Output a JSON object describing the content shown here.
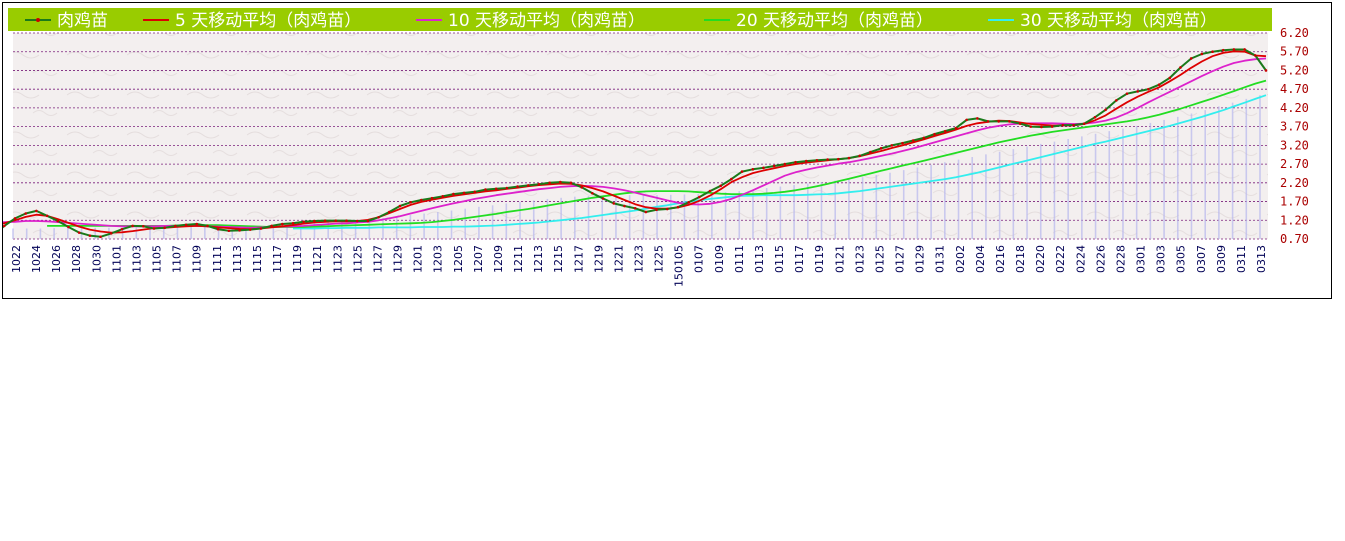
{
  "colors": {
    "legend_bg": "#99cc00",
    "plot_bg": "#f3efef",
    "grid": "#7a1f7a",
    "price": "#1a7a1a",
    "price_marker": "#cc0000",
    "ma5": "#dd0000",
    "ma10": "#dd22cc",
    "ma20": "#22dd22",
    "ma30": "#33eeee",
    "volume_bar": "#b8b8ee",
    "y_tick_text": "#aa0000",
    "x_tick_text": "#000055"
  },
  "chart_data": {
    "type": "line",
    "x_ticks": [
      "1022",
      "1024",
      "1026",
      "1028",
      "1030",
      "1101",
      "1103",
      "1105",
      "1107",
      "1109",
      "1111",
      "1113",
      "1115",
      "1117",
      "1119",
      "1121",
      "1123",
      "1125",
      "1127",
      "1129",
      "1201",
      "1203",
      "1205",
      "1207",
      "1209",
      "1211",
      "1213",
      "1215",
      "1217",
      "1219",
      "1221",
      "1223",
      "1225",
      "150105",
      "0107",
      "0109",
      "0111",
      "0113",
      "0115",
      "0117",
      "0119",
      "0121",
      "0123",
      "0125",
      "0127",
      "0129",
      "0131",
      "0202",
      "0204",
      "0216",
      "0218",
      "0220",
      "0222",
      "0224",
      "0226",
      "0228",
      "0301",
      "0303",
      "0305",
      "0307",
      "0309",
      "0311",
      "0313"
    ],
    "ylim": [
      0.7,
      6.2
    ],
    "y_ticks": [
      "6.20",
      "5.70",
      "5.20",
      "4.70",
      "4.20",
      "3.70",
      "3.20",
      "2.70",
      "2.20",
      "1.70",
      "1.20",
      "0.70"
    ],
    "grid": true,
    "legend_position": "top",
    "series": [
      {
        "name": "肉鸡苗",
        "style": "line-with-markers",
        "values": [
          0.8,
          1.05,
          1.25,
          1.38,
          1.45,
          1.32,
          1.18,
          1.02,
          0.87,
          0.79,
          0.76,
          0.85,
          0.96,
          1.05,
          1.04,
          0.98,
          1.0,
          1.05,
          1.08,
          1.1,
          1.05,
          0.96,
          0.92,
          0.93,
          0.95,
          0.98,
          1.05,
          1.1,
          1.12,
          1.16,
          1.18,
          1.19,
          1.19,
          1.19,
          1.18,
          1.18,
          1.28,
          1.42,
          1.58,
          1.68,
          1.74,
          1.79,
          1.84,
          1.9,
          1.93,
          1.96,
          2.02,
          2.04,
          2.06,
          2.1,
          2.13,
          2.16,
          2.2,
          2.22,
          2.2,
          2.08,
          1.92,
          1.78,
          1.65,
          1.58,
          1.52,
          1.42,
          1.48,
          1.5,
          1.55,
          1.68,
          1.82,
          1.98,
          2.12,
          2.3,
          2.5,
          2.56,
          2.6,
          2.65,
          2.7,
          2.75,
          2.78,
          2.8,
          2.82,
          2.83,
          2.86,
          2.92,
          3.02,
          3.12,
          3.2,
          3.26,
          3.33,
          3.4,
          3.5,
          3.58,
          3.66,
          3.88,
          3.92,
          3.84,
          3.84,
          3.84,
          3.78,
          3.7,
          3.69,
          3.7,
          3.74,
          3.74,
          3.78,
          3.95,
          4.15,
          4.4,
          4.58,
          4.64,
          4.7,
          4.82,
          5.0,
          5.28,
          5.52,
          5.64,
          5.7,
          5.74,
          5.76,
          5.76,
          5.6,
          5.2
        ]
      },
      {
        "name": "5 天移动平均（肉鸡苗）",
        "values": [
          1.0,
          1.06,
          1.12,
          1.2,
          1.29,
          1.35,
          1.32,
          1.23,
          1.13,
          1.03,
          0.95,
          0.9,
          0.87,
          0.88,
          0.91,
          0.95,
          0.99,
          1.0,
          1.02,
          1.04,
          1.05,
          1.04,
          1.01,
          0.99,
          0.97,
          0.96,
          0.98,
          1.01,
          1.04,
          1.07,
          1.11,
          1.14,
          1.16,
          1.17,
          1.17,
          1.18,
          1.21,
          1.28,
          1.39,
          1.5,
          1.61,
          1.69,
          1.75,
          1.8,
          1.85,
          1.89,
          1.93,
          1.97,
          2.0,
          2.04,
          2.07,
          2.11,
          2.14,
          2.16,
          2.18,
          2.17,
          2.13,
          2.06,
          1.97,
          1.86,
          1.74,
          1.63,
          1.55,
          1.51,
          1.51,
          1.54,
          1.61,
          1.72,
          1.86,
          2.03,
          2.22,
          2.35,
          2.46,
          2.53,
          2.59,
          2.65,
          2.7,
          2.74,
          2.77,
          2.8,
          2.83,
          2.86,
          2.91,
          2.98,
          3.05,
          3.13,
          3.2,
          3.28,
          3.36,
          3.45,
          3.53,
          3.62,
          3.72,
          3.79,
          3.83,
          3.86,
          3.85,
          3.81,
          3.77,
          3.75,
          3.73,
          3.73,
          3.73,
          3.77,
          3.87,
          4.0,
          4.18,
          4.35,
          4.5,
          4.63,
          4.75,
          4.91,
          5.08,
          5.27,
          5.44,
          5.58,
          5.67,
          5.71,
          5.7,
          5.6,
          5.58
        ]
      },
      {
        "name": "10 天移动平均（肉鸡苗）",
        "values": [
          1.15,
          1.15,
          1.15,
          1.16,
          1.18,
          1.18,
          1.17,
          1.15,
          1.13,
          1.11,
          1.09,
          1.07,
          1.05,
          1.04,
          1.04,
          1.04,
          1.04,
          1.05,
          1.05,
          1.05,
          1.05,
          1.04,
          1.03,
          1.02,
          1.01,
          1.0,
          1.01,
          1.02,
          1.03,
          1.04,
          1.05,
          1.07,
          1.09,
          1.11,
          1.12,
          1.14,
          1.16,
          1.2,
          1.25,
          1.31,
          1.38,
          1.45,
          1.52,
          1.59,
          1.65,
          1.71,
          1.77,
          1.82,
          1.87,
          1.91,
          1.95,
          1.99,
          2.03,
          2.06,
          2.09,
          2.11,
          2.12,
          2.11,
          2.09,
          2.05,
          2.0,
          1.94,
          1.87,
          1.8,
          1.73,
          1.67,
          1.63,
          1.62,
          1.64,
          1.69,
          1.77,
          1.88,
          2.0,
          2.13,
          2.26,
          2.39,
          2.48,
          2.55,
          2.61,
          2.66,
          2.71,
          2.75,
          2.8,
          2.86,
          2.92,
          2.98,
          3.05,
          3.12,
          3.2,
          3.28,
          3.36,
          3.44,
          3.52,
          3.6,
          3.67,
          3.72,
          3.76,
          3.78,
          3.79,
          3.79,
          3.79,
          3.78,
          3.77,
          3.78,
          3.81,
          3.86,
          3.94,
          4.06,
          4.2,
          4.35,
          4.49,
          4.63,
          4.77,
          4.91,
          5.05,
          5.18,
          5.3,
          5.4,
          5.46,
          5.5,
          5.52
        ]
      },
      {
        "name": "20 天移动平均（肉鸡苗）",
        "values": [
          1.05,
          1.05,
          1.05,
          1.05,
          1.05,
          1.05,
          1.05,
          1.05,
          1.05,
          1.05,
          1.05,
          1.05,
          1.06,
          1.06,
          1.07,
          1.07,
          1.07,
          1.06,
          1.05,
          1.04,
          1.03,
          1.02,
          1.02,
          1.02,
          1.02,
          1.03,
          1.04,
          1.05,
          1.06,
          1.07,
          1.08,
          1.09,
          1.1,
          1.11,
          1.12,
          1.13,
          1.15,
          1.18,
          1.21,
          1.25,
          1.29,
          1.33,
          1.37,
          1.42,
          1.46,
          1.5,
          1.55,
          1.6,
          1.65,
          1.7,
          1.75,
          1.8,
          1.84,
          1.88,
          1.92,
          1.95,
          1.97,
          1.98,
          1.98,
          1.98,
          1.97,
          1.95,
          1.93,
          1.91,
          1.9,
          1.9,
          1.9,
          1.91,
          1.93,
          1.96,
          2.0,
          2.05,
          2.11,
          2.17,
          2.24,
          2.31,
          2.38,
          2.45,
          2.52,
          2.59,
          2.66,
          2.72,
          2.79,
          2.86,
          2.93,
          3.0,
          3.07,
          3.14,
          3.21,
          3.28,
          3.34,
          3.4,
          3.46,
          3.51,
          3.56,
          3.6,
          3.64,
          3.68,
          3.72,
          3.76,
          3.8,
          3.84,
          3.89,
          3.95,
          4.02,
          4.1,
          4.18,
          4.27,
          4.36,
          4.45,
          4.55,
          4.65,
          4.75,
          4.85,
          4.93
        ]
      },
      {
        "name": "30 天移动平均（肉鸡苗）",
        "values": [
          0.98,
          0.98,
          0.98,
          0.99,
          0.99,
          1.0,
          1.0,
          1.0,
          1.01,
          1.01,
          1.01,
          1.01,
          1.02,
          1.02,
          1.02,
          1.03,
          1.03,
          1.04,
          1.05,
          1.06,
          1.08,
          1.1,
          1.12,
          1.14,
          1.17,
          1.2,
          1.23,
          1.26,
          1.3,
          1.34,
          1.38,
          1.42,
          1.46,
          1.51,
          1.56,
          1.6,
          1.65,
          1.69,
          1.73,
          1.77,
          1.8,
          1.83,
          1.85,
          1.86,
          1.87,
          1.87,
          1.87,
          1.87,
          1.88,
          1.89,
          1.9,
          1.92,
          1.95,
          1.98,
          2.02,
          2.06,
          2.1,
          2.14,
          2.18,
          2.22,
          2.26,
          2.3,
          2.35,
          2.41,
          2.47,
          2.54,
          2.61,
          2.68,
          2.75,
          2.82,
          2.89,
          2.96,
          3.03,
          3.1,
          3.17,
          3.24,
          3.3,
          3.37,
          3.44,
          3.51,
          3.58,
          3.65,
          3.72,
          3.8,
          3.88,
          3.96,
          4.05,
          4.14,
          4.24,
          4.34,
          4.44,
          4.54
        ]
      }
    ]
  }
}
